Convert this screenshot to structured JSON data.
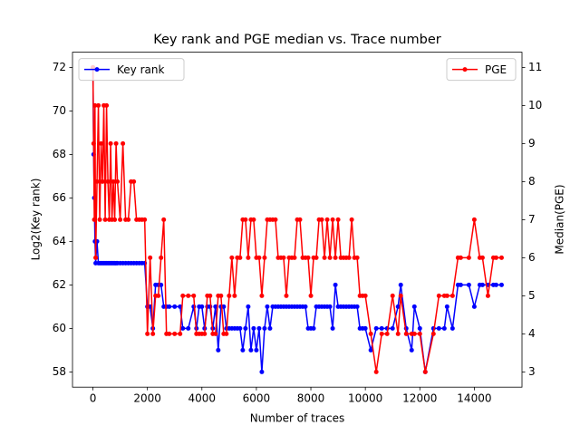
{
  "chart_data": {
    "type": "dual_axis_line",
    "title": "Key rank and PGE median vs. Trace number",
    "x_label": "Number of traces",
    "y_label": "Log2(Key rank)",
    "y2_label": "Median(PGE)",
    "x": [
      0,
      25,
      50,
      75,
      100,
      150,
      200,
      250,
      300,
      350,
      400,
      450,
      500,
      550,
      600,
      650,
      700,
      750,
      800,
      850,
      900,
      1000,
      1100,
      1200,
      1300,
      1400,
      1500,
      1600,
      1700,
      1800,
      1900,
      2000,
      2100,
      2200,
      2300,
      2400,
      2500,
      2600,
      2700,
      2800,
      3000,
      3200,
      3300,
      3500,
      3700,
      3800,
      3900,
      4000,
      4100,
      4200,
      4300,
      4400,
      4500,
      4600,
      4700,
      4800,
      4900,
      5000,
      5100,
      5200,
      5300,
      5400,
      5500,
      5600,
      5700,
      5800,
      5900,
      6000,
      6100,
      6200,
      6300,
      6400,
      6500,
      6600,
      6700,
      6800,
      6900,
      7000,
      7100,
      7200,
      7300,
      7400,
      7500,
      7600,
      7700,
      7800,
      7900,
      8000,
      8100,
      8200,
      8300,
      8400,
      8500,
      8600,
      8700,
      8800,
      8900,
      9000,
      9100,
      9200,
      9300,
      9400,
      9500,
      9600,
      9700,
      9800,
      9900,
      10000,
      10200,
      10400,
      10600,
      10800,
      11000,
      11200,
      11300,
      11500,
      11700,
      11800,
      12000,
      12200,
      12500,
      12700,
      12900,
      13000,
      13200,
      13400,
      13500,
      13800,
      14000,
      14200,
      14300,
      14500,
      14700,
      14800,
      15000
    ],
    "series": [
      {
        "name": "Key rank",
        "color": "#0000ff",
        "axis": "y",
        "values": [
          72,
          68,
          66,
          64,
          63,
          64,
          63,
          63,
          63,
          63,
          63,
          63,
          63,
          63,
          63,
          63,
          63,
          63,
          63,
          63,
          63,
          63,
          63,
          63,
          63,
          63,
          63,
          63,
          63,
          63,
          63,
          61,
          61,
          60,
          62,
          62,
          62,
          61,
          61,
          61,
          61,
          61,
          60,
          60,
          61,
          60,
          61,
          61,
          60,
          61,
          61,
          60,
          61,
          59,
          61,
          61,
          60,
          60,
          60,
          60,
          60,
          60,
          59,
          60,
          61,
          59,
          60,
          59,
          60,
          58,
          60,
          61,
          60,
          61,
          61,
          61,
          61,
          61,
          61,
          61,
          61,
          61,
          61,
          61,
          61,
          61,
          60,
          60,
          60,
          61,
          61,
          61,
          61,
          61,
          61,
          60,
          62,
          61,
          61,
          61,
          61,
          61,
          61,
          61,
          61,
          60,
          60,
          60,
          59,
          60,
          60,
          60,
          60,
          61,
          62,
          60,
          59,
          61,
          60,
          58,
          60,
          60,
          60,
          61,
          60,
          62,
          62,
          62,
          61,
          62,
          62,
          62,
          62,
          62,
          62
        ]
      },
      {
        "name": "PGE",
        "color": "#ff0000",
        "axis": "y2",
        "values": [
          11,
          9,
          7,
          10,
          6,
          8,
          10,
          7,
          9,
          8,
          10,
          7,
          10,
          8,
          7,
          9,
          7,
          8,
          7,
          9,
          8,
          7,
          9,
          7,
          7,
          8,
          8,
          7,
          7,
          7,
          7,
          4,
          6,
          4,
          5,
          5,
          6,
          7,
          4,
          4,
          4,
          4,
          5,
          5,
          5,
          4,
          4,
          4,
          4,
          5,
          5,
          4,
          4,
          5,
          5,
          4,
          4,
          5,
          6,
          5,
          6,
          6,
          7,
          7,
          6,
          7,
          7,
          6,
          6,
          5,
          6,
          7,
          7,
          7,
          7,
          6,
          6,
          6,
          5,
          6,
          6,
          6,
          7,
          7,
          6,
          6,
          6,
          5,
          6,
          6,
          7,
          7,
          6,
          7,
          6,
          7,
          6,
          7,
          6,
          6,
          6,
          6,
          7,
          6,
          6,
          5,
          5,
          5,
          4,
          3,
          4,
          4,
          5,
          4,
          5,
          4,
          4,
          4,
          4,
          3,
          4,
          5,
          5,
          5,
          5,
          6,
          6,
          6,
          7,
          6,
          6,
          5,
          6,
          6,
          6
        ]
      }
    ],
    "xlim": [
      -750,
      15750
    ],
    "xticks": [
      0,
      2000,
      4000,
      6000,
      8000,
      10000,
      12000,
      14000
    ],
    "ylim": [
      57.3,
      72.7
    ],
    "yticks": [
      58,
      60,
      62,
      64,
      66,
      68,
      70,
      72
    ],
    "y2lim": [
      2.6,
      11.4
    ],
    "y2ticks": [
      3,
      4,
      5,
      6,
      7,
      8,
      9,
      10,
      11
    ],
    "legend": [
      "upper left",
      "upper right"
    ],
    "grid": false
  }
}
